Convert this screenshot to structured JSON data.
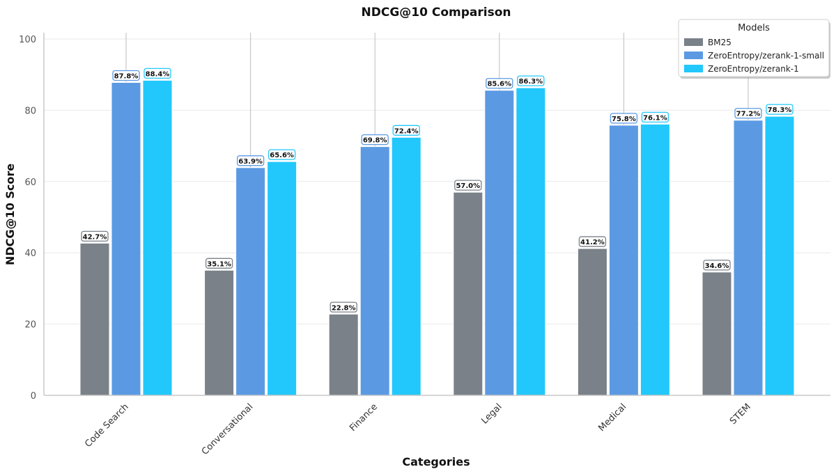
{
  "chart_data": {
    "type": "bar",
    "title": "NDCG@10 Comparison",
    "xlabel": "Categories",
    "ylabel": "NDCG@10 Score",
    "categories": [
      "Code Search",
      "Conversational",
      "Finance",
      "Legal",
      "Medical",
      "STEM"
    ],
    "series": [
      {
        "name": "BM25",
        "color": "#7a8189",
        "values": [
          42.7,
          35.1,
          22.8,
          57.0,
          41.2,
          34.6
        ],
        "labels": [
          "42.7%",
          "35.1%",
          "22.8%",
          "57.0%",
          "41.2%",
          "34.6%"
        ]
      },
      {
        "name": "ZeroEntropy/zerank-1-small",
        "color": "#5b9ae3",
        "values": [
          87.8,
          63.9,
          69.8,
          85.6,
          75.8,
          77.2
        ],
        "labels": [
          "87.8%",
          "63.9%",
          "69.8%",
          "85.6%",
          "75.8%",
          "77.2%"
        ]
      },
      {
        "name": "ZeroEntropy/zerank-1",
        "color": "#22c8fb",
        "values": [
          88.4,
          65.6,
          72.4,
          86.3,
          76.1,
          78.3
        ],
        "labels": [
          "88.4%",
          "65.6%",
          "72.4%",
          "86.3%",
          "76.1%",
          "78.3%"
        ]
      }
    ],
    "ylim": [
      0,
      100
    ],
    "yticks": [
      "0",
      "20",
      "40",
      "60",
      "80",
      "100"
    ],
    "grid": true,
    "legend": {
      "title": "Models",
      "position": "top-right"
    },
    "background": "#ffffff"
  }
}
